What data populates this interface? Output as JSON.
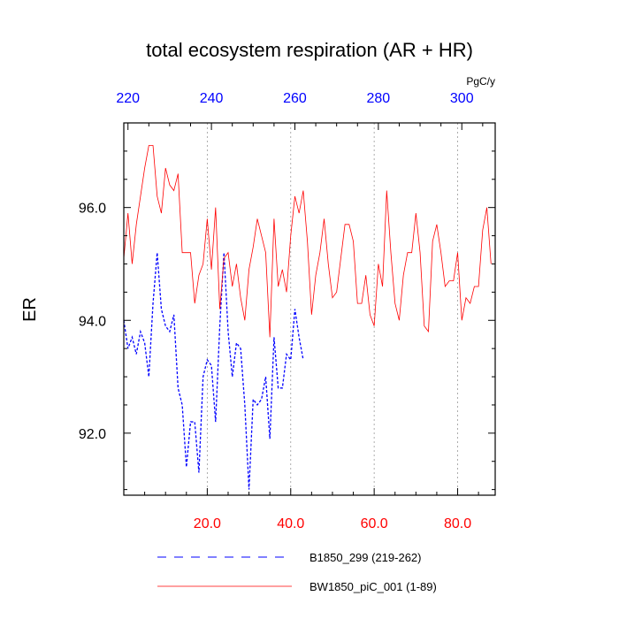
{
  "chart_data": {
    "type": "line",
    "title": "total ecosystem respiration (AR + HR)",
    "units": "PgC/y",
    "ylabel": "ER",
    "xlim": [
      0,
      89
    ],
    "ylim": [
      90.9,
      97.5
    ],
    "top_xlim": [
      219,
      308
    ],
    "grid": "vertical dotted at 20, 40, 60, 80",
    "legend_position": "bottom",
    "x_ticks": [
      "20.0",
      "40.0",
      "60.0",
      "80.0"
    ],
    "x_tick_values": [
      20,
      40,
      60,
      80
    ],
    "top_x_ticks": [
      "220",
      "240",
      "260",
      "280",
      "300"
    ],
    "top_x_tick_values": [
      220,
      240,
      260,
      280,
      300
    ],
    "y_ticks": [
      "92.0",
      "94.0",
      "96.0"
    ],
    "y_tick_values": [
      92,
      94,
      96
    ],
    "series": [
      {
        "name": "B1850_299 (219-262)",
        "color": "#0000ff",
        "style": "dashed",
        "x_start": 0,
        "values": [
          94.0,
          93.5,
          93.7,
          93.4,
          93.8,
          93.6,
          93.0,
          94.3,
          95.2,
          94.2,
          93.9,
          93.8,
          94.1,
          92.8,
          92.5,
          91.4,
          92.2,
          92.2,
          91.3,
          93.0,
          93.3,
          93.2,
          92.2,
          93.9,
          95.2,
          93.8,
          93.0,
          93.6,
          93.5,
          92.5,
          91.0,
          92.6,
          92.5,
          92.6,
          93.0,
          91.9,
          93.7,
          92.8,
          92.8,
          93.4,
          93.3,
          94.2,
          93.7,
          93.3
        ]
      },
      {
        "name": "BW1850_piC_001 (1-89)",
        "color": "#ff0000",
        "style": "solid",
        "x_start": 0,
        "values": [
          95.1,
          95.9,
          95.0,
          95.7,
          96.2,
          96.7,
          97.1,
          97.1,
          96.2,
          95.9,
          96.7,
          96.4,
          96.3,
          96.6,
          95.2,
          95.2,
          95.2,
          94.3,
          94.8,
          95.0,
          95.8,
          94.9,
          96.0,
          94.2,
          95.1,
          95.2,
          94.6,
          95.0,
          94.4,
          94.0,
          94.9,
          95.3,
          95.8,
          95.5,
          95.2,
          93.7,
          95.8,
          94.6,
          94.9,
          94.5,
          95.5,
          96.2,
          95.9,
          96.3,
          95.4,
          94.1,
          94.8,
          95.2,
          95.8,
          95.0,
          94.4,
          94.5,
          95.1,
          95.7,
          95.7,
          95.4,
          94.3,
          94.3,
          94.8,
          94.1,
          93.9,
          95.0,
          94.6,
          96.3,
          95.2,
          94.3,
          94.0,
          94.8,
          95.2,
          95.2,
          95.9,
          95.2,
          93.9,
          93.8,
          95.4,
          95.7,
          95.2,
          94.6,
          94.7,
          94.7,
          95.2,
          94.0,
          94.4,
          94.3,
          94.6,
          94.6,
          95.6,
          96.0,
          95.0
        ]
      }
    ]
  }
}
